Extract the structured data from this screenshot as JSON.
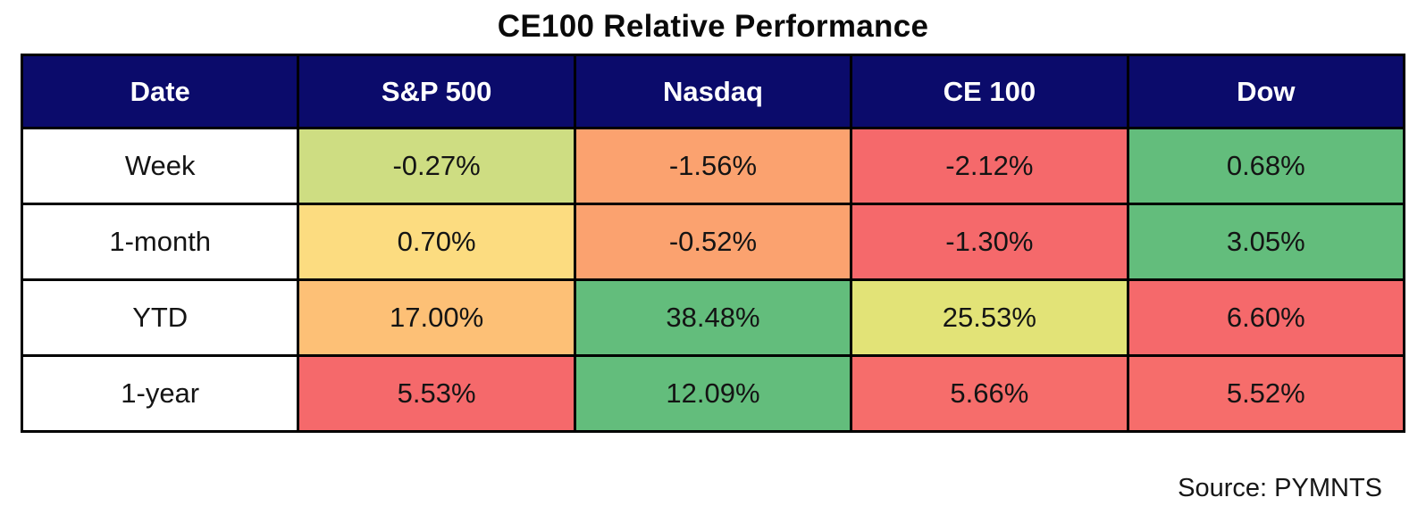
{
  "title": "CE100 Relative Performance",
  "source_note": "Source: PYMNTS",
  "colors": {
    "header_bg": "#0b0b6b",
    "header_text": "#ffffff",
    "border": "#000000",
    "label_bg": "#ffffff",
    "heatmap_red": "#f5696b",
    "heatmap_salmon": "#fba26f",
    "heatmap_orange": "#fdc076",
    "heatmap_yellow": "#fcdc80",
    "heatmap_yellow_green": "#e2e377",
    "heatmap_olive": "#cedd82",
    "heatmap_green": "#63bd7c"
  },
  "chart_data": {
    "type": "table",
    "title": "CE100 Relative Performance",
    "columns": [
      "Date",
      "S&P 500",
      "Nasdaq",
      "CE 100",
      "Dow"
    ],
    "rows": [
      {
        "label": "Week",
        "cells": [
          {
            "text": "-0.27%",
            "value": -0.27,
            "bg": "#cedd82"
          },
          {
            "text": "-1.56%",
            "value": -1.56,
            "bg": "#fba26f"
          },
          {
            "text": "-2.12%",
            "value": -2.12,
            "bg": "#f5696b"
          },
          {
            "text": "0.68%",
            "value": 0.68,
            "bg": "#63bd7c"
          }
        ]
      },
      {
        "label": "1-month",
        "cells": [
          {
            "text": "0.70%",
            "value": 0.7,
            "bg": "#fcdc80"
          },
          {
            "text": "-0.52%",
            "value": -0.52,
            "bg": "#fba26f"
          },
          {
            "text": "-1.30%",
            "value": -1.3,
            "bg": "#f5696b"
          },
          {
            "text": "3.05%",
            "value": 3.05,
            "bg": "#63bd7c"
          }
        ]
      },
      {
        "label": "YTD",
        "cells": [
          {
            "text": "17.00%",
            "value": 17.0,
            "bg": "#fdc076"
          },
          {
            "text": "38.48%",
            "value": 38.48,
            "bg": "#63bd7c"
          },
          {
            "text": "25.53%",
            "value": 25.53,
            "bg": "#e2e377"
          },
          {
            "text": "6.60%",
            "value": 6.6,
            "bg": "#f5696b"
          }
        ]
      },
      {
        "label": "1-year",
        "cells": [
          {
            "text": "5.53%",
            "value": 5.53,
            "bg": "#f5696b"
          },
          {
            "text": "12.09%",
            "value": 12.09,
            "bg": "#63bd7c"
          },
          {
            "text": "5.66%",
            "value": 5.66,
            "bg": "#f66d6b"
          },
          {
            "text": "5.52%",
            "value": 5.52,
            "bg": "#f66d6b"
          }
        ]
      }
    ]
  }
}
